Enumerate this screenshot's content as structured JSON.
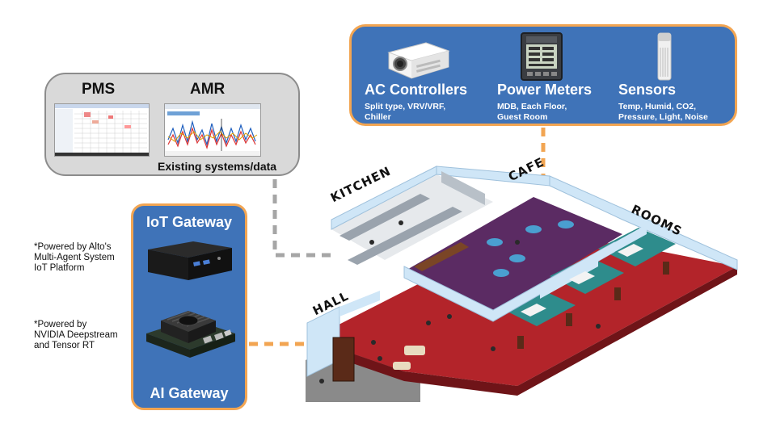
{
  "existing": {
    "pms_label": "PMS",
    "amr_label": "AMR",
    "caption": "Existing systems/data"
  },
  "devices": {
    "ac": {
      "title": "AC Controllers",
      "subtitle_line1": "Split type, VRV/VRF,",
      "subtitle_line2": "Chiller"
    },
    "power": {
      "title": "Power Meters",
      "subtitle_line1": "MDB, Each Floor,",
      "subtitle_line2": "Guest Room"
    },
    "sensors": {
      "title": "Sensors",
      "subtitle_line1": "Temp, Humid, CO2,",
      "subtitle_line2": "Pressure, Light, Noise"
    }
  },
  "gateway": {
    "iot_title": "IoT Gateway",
    "ai_title": "AI Gateway"
  },
  "notes": {
    "iot_line1": "*Powered by Alto's",
    "iot_line2": "Multi-Agent System",
    "iot_line3": "IoT Platform",
    "ai_line1": "*Powered by",
    "ai_line2": "NVIDIA Deepstream",
    "ai_line3": "and Tensor RT"
  },
  "rooms": {
    "kitchen": "KITCHEN",
    "cafe": "CAFE",
    "rooms": "ROOMS",
    "hall": "HALL"
  },
  "colors": {
    "blue_panel": "#3f73b8",
    "orange_border": "#f2a552",
    "grey_panel": "#d9d9d9",
    "connector_grey": "#a6a6a6",
    "connector_orange": "#f2a552",
    "floor_red": "#c0272d",
    "floor_purple": "#5b2b63",
    "wall_blue": "#cfe6f7"
  },
  "icons": [
    "projector-ac-controller-icon",
    "power-meter-icon",
    "sensor-icon",
    "mini-pc-icon",
    "jetson-board-icon"
  ]
}
